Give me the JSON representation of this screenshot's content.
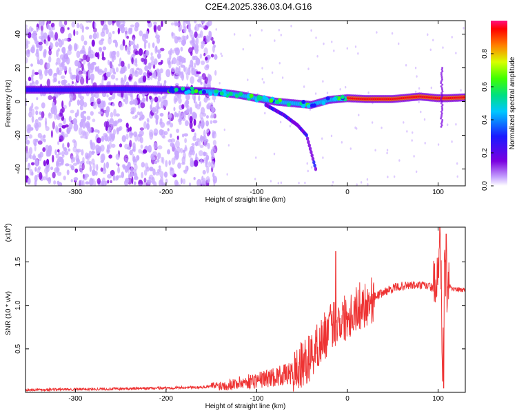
{
  "title": "C2E4.2025.336.03.04.G16",
  "chart_data": [
    {
      "type": "heatmap",
      "xlabel": "Height of straight line (km)",
      "ylabel": "Frequency (Hz)",
      "xlim": [
        -355,
        130
      ],
      "ylim": [
        -50,
        48
      ],
      "x_ticks": [
        -300,
        -200,
        -100,
        0,
        100
      ],
      "y_ticks": [
        -40,
        -20,
        0,
        20,
        40
      ],
      "grid": false,
      "ridge": {
        "x": [
          -355,
          -300,
          -250,
          -200,
          -150,
          -120,
          -100,
          -80,
          -60,
          -40,
          -20,
          0,
          20,
          50,
          80,
          100,
          110,
          130
        ],
        "y": [
          7,
          7,
          7.5,
          7,
          6,
          4,
          2,
          0,
          -1,
          -2,
          1,
          2,
          1.5,
          1.5,
          3,
          2,
          2,
          2.5
        ]
      },
      "branch": {
        "x": [
          -90,
          -70,
          -55,
          -45,
          -40,
          -35
        ],
        "y": [
          -2,
          -8,
          -14,
          -20,
          -30,
          -40
        ]
      },
      "colorbar": {
        "label": "Normalized spectral amplitude",
        "ticks": [
          0.0,
          0.2,
          0.4,
          0.6,
          0.8
        ],
        "range": [
          0,
          1
        ]
      }
    },
    {
      "type": "line",
      "xlabel": "Height of straight line (km)",
      "ylabel": "SNR (10 * v/v)",
      "y_multiplier": "(x10",
      "y_multiplier_exp": "4",
      "y_multiplier_close": ")",
      "xlim": [
        -355,
        130
      ],
      "ylim": [
        0,
        1.9
      ],
      "x_ticks": [
        -300,
        -200,
        -100,
        0,
        100
      ],
      "y_ticks": [
        0.5,
        1.0,
        1.5
      ],
      "y_tick_labels": [
        "0.5",
        "1.0",
        "1.5"
      ],
      "color": "#ee3333",
      "series": [
        {
          "x": [
            -355,
            -300,
            -250,
            -200,
            -160,
            -130,
            -100,
            -80,
            -60,
            -45,
            -35,
            -25,
            -15,
            -5,
            5,
            15,
            25,
            30,
            40,
            50,
            60,
            70,
            80,
            90,
            95,
            100,
            103,
            105,
            107,
            110,
            115,
            120,
            130
          ],
          "y": [
            0.03,
            0.035,
            0.04,
            0.05,
            0.06,
            0.09,
            0.14,
            0.18,
            0.22,
            0.35,
            0.5,
            0.65,
            0.8,
            0.85,
            0.92,
            1.0,
            1.05,
            1.1,
            1.15,
            1.2,
            1.22,
            1.23,
            1.23,
            1.22,
            1.2,
            1.25,
            1.5,
            0.3,
            1.4,
            1.25,
            1.2,
            1.18,
            1.18
          ]
        }
      ],
      "peaks": [
        {
          "x": -13,
          "y": 1.62
        },
        {
          "x": 102,
          "y": 1.9
        },
        {
          "x": 106,
          "y": 0.05
        },
        {
          "x": 109,
          "y": 1.82
        }
      ]
    }
  ]
}
